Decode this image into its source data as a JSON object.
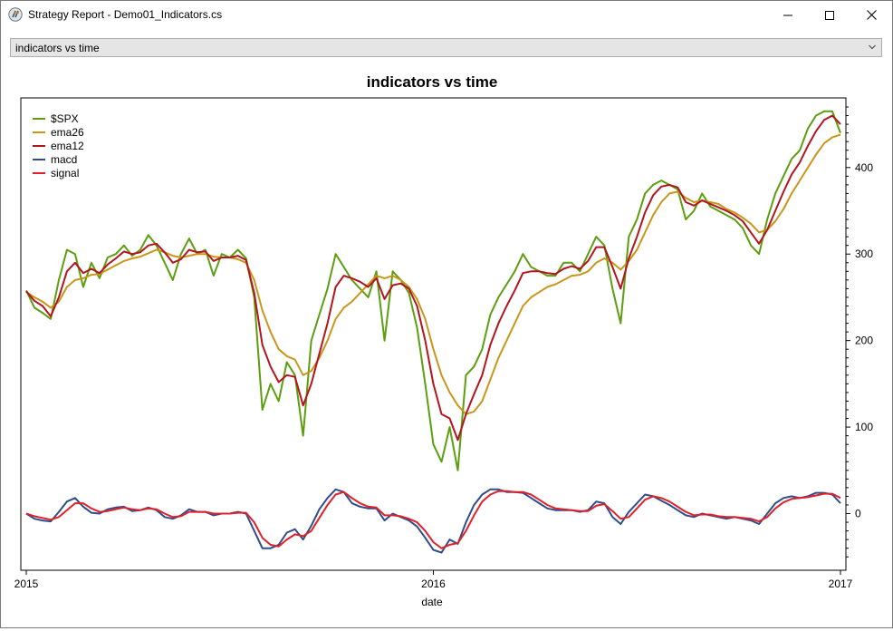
{
  "window": {
    "title": "Strategy Report - Demo01_Indicators.cs",
    "icon": "app-logo-icon",
    "controls": [
      "minimize-icon",
      "maximize-icon",
      "close-icon"
    ]
  },
  "selector": {
    "selected": "indicators vs time",
    "icon": "chevron-down-icon"
  },
  "chart_data": {
    "type": "line",
    "title": "indicators vs time",
    "xlabel": "date",
    "ylabel": "",
    "x_ticks": [
      "2015",
      "2016",
      "2017"
    ],
    "y_ticks": [
      "0",
      "100",
      "200",
      "300",
      "400"
    ],
    "xlim": [
      2015.0,
      2017.0
    ],
    "ylim": [
      -55,
      470
    ],
    "legend_position": "top-left",
    "grid": false,
    "series": [
      {
        "name": "$SPX",
        "color": "#5b9e0f",
        "x": [
          2015.0,
          2015.02,
          2015.04,
          2015.06,
          2015.08,
          2015.1,
          2015.12,
          2015.14,
          2015.16,
          2015.18,
          2015.2,
          2015.22,
          2015.24,
          2015.26,
          2015.28,
          2015.3,
          2015.32,
          2015.34,
          2015.36,
          2015.38,
          2015.4,
          2015.42,
          2015.44,
          2015.46,
          2015.48,
          2015.5,
          2015.52,
          2015.54,
          2015.56,
          2015.58,
          2015.6,
          2015.62,
          2015.64,
          2015.66,
          2015.68,
          2015.7,
          2015.72,
          2015.74,
          2015.76,
          2015.78,
          2015.8,
          2015.82,
          2015.84,
          2015.86,
          2015.88,
          2015.9,
          2015.92,
          2015.94,
          2015.96,
          2015.98,
          2016.0,
          2016.02,
          2016.04,
          2016.06,
          2016.08,
          2016.1,
          2016.12,
          2016.14,
          2016.16,
          2016.18,
          2016.2,
          2016.22,
          2016.24,
          2016.26,
          2016.28,
          2016.3,
          2016.32,
          2016.34,
          2016.36,
          2016.38,
          2016.4,
          2016.42,
          2016.44,
          2016.46,
          2016.48,
          2016.5,
          2016.52,
          2016.54,
          2016.56,
          2016.58,
          2016.6,
          2016.62,
          2016.64,
          2016.66,
          2016.68,
          2016.7,
          2016.72,
          2016.74,
          2016.76,
          2016.78,
          2016.8,
          2016.82,
          2016.84,
          2016.86,
          2016.88,
          2016.9,
          2016.92,
          2016.94,
          2016.96,
          2016.98,
          2017.0
        ],
        "y": [
          258,
          238,
          232,
          225,
          270,
          305,
          300,
          262,
          290,
          272,
          296,
          300,
          310,
          298,
          305,
          322,
          310,
          290,
          270,
          300,
          318,
          300,
          305,
          275,
          300,
          296,
          305,
          295,
          250,
          120,
          150,
          130,
          175,
          160,
          90,
          200,
          230,
          260,
          300,
          285,
          270,
          260,
          250,
          280,
          200,
          280,
          270,
          255,
          215,
          150,
          80,
          60,
          100,
          50,
          160,
          170,
          190,
          230,
          250,
          265,
          280,
          300,
          285,
          280,
          275,
          275,
          290,
          290,
          280,
          300,
          320,
          310,
          260,
          220,
          320,
          340,
          370,
          380,
          385,
          380,
          375,
          340,
          350,
          370,
          355,
          350,
          345,
          340,
          330,
          310,
          300,
          340,
          370,
          390,
          410,
          420,
          445,
          460,
          465,
          465,
          440
        ]
      },
      {
        "name": "ema26",
        "color": "#c8961a",
        "x": [
          2015.0,
          2015.02,
          2015.04,
          2015.06,
          2015.08,
          2015.1,
          2015.12,
          2015.14,
          2015.16,
          2015.18,
          2015.2,
          2015.22,
          2015.24,
          2015.26,
          2015.28,
          2015.3,
          2015.32,
          2015.34,
          2015.36,
          2015.38,
          2015.4,
          2015.42,
          2015.44,
          2015.46,
          2015.48,
          2015.5,
          2015.52,
          2015.54,
          2015.56,
          2015.58,
          2015.6,
          2015.62,
          2015.64,
          2015.66,
          2015.68,
          2015.7,
          2015.72,
          2015.74,
          2015.76,
          2015.78,
          2015.8,
          2015.82,
          2015.84,
          2015.86,
          2015.88,
          2015.9,
          2015.92,
          2015.94,
          2015.96,
          2015.98,
          2016.0,
          2016.02,
          2016.04,
          2016.06,
          2016.08,
          2016.1,
          2016.12,
          2016.14,
          2016.16,
          2016.18,
          2016.2,
          2016.22,
          2016.24,
          2016.26,
          2016.28,
          2016.3,
          2016.32,
          2016.34,
          2016.36,
          2016.38,
          2016.4,
          2016.42,
          2016.44,
          2016.46,
          2016.48,
          2016.5,
          2016.52,
          2016.54,
          2016.56,
          2016.58,
          2016.6,
          2016.62,
          2016.64,
          2016.66,
          2016.68,
          2016.7,
          2016.72,
          2016.74,
          2016.76,
          2016.78,
          2016.8,
          2016.82,
          2016.84,
          2016.86,
          2016.88,
          2016.9,
          2016.92,
          2016.94,
          2016.96,
          2016.98,
          2017.0
        ],
        "y": [
          256,
          250,
          245,
          238,
          245,
          262,
          270,
          272,
          276,
          277,
          282,
          287,
          292,
          295,
          297,
          301,
          305,
          302,
          298,
          296,
          298,
          300,
          300,
          297,
          296,
          296,
          294,
          290,
          270,
          235,
          210,
          190,
          182,
          178,
          160,
          165,
          180,
          200,
          225,
          238,
          245,
          255,
          265,
          275,
          272,
          275,
          270,
          262,
          248,
          225,
          190,
          160,
          140,
          125,
          115,
          118,
          130,
          155,
          180,
          200,
          220,
          240,
          250,
          256,
          262,
          265,
          270,
          275,
          276,
          280,
          290,
          295,
          290,
          282,
          292,
          305,
          325,
          345,
          360,
          370,
          372,
          365,
          360,
          362,
          360,
          358,
          352,
          348,
          342,
          335,
          325,
          328,
          338,
          352,
          370,
          385,
          400,
          415,
          428,
          435,
          438
        ]
      },
      {
        "name": "ema12",
        "color": "#b3141e",
        "x": [
          2015.0,
          2015.02,
          2015.04,
          2015.06,
          2015.08,
          2015.1,
          2015.12,
          2015.14,
          2015.16,
          2015.18,
          2015.2,
          2015.22,
          2015.24,
          2015.26,
          2015.28,
          2015.3,
          2015.32,
          2015.34,
          2015.36,
          2015.38,
          2015.4,
          2015.42,
          2015.44,
          2015.46,
          2015.48,
          2015.5,
          2015.52,
          2015.54,
          2015.56,
          2015.58,
          2015.6,
          2015.62,
          2015.64,
          2015.66,
          2015.68,
          2015.7,
          2015.72,
          2015.74,
          2015.76,
          2015.78,
          2015.8,
          2015.82,
          2015.84,
          2015.86,
          2015.88,
          2015.9,
          2015.92,
          2015.94,
          2015.96,
          2015.98,
          2016.0,
          2016.02,
          2016.04,
          2016.06,
          2016.08,
          2016.1,
          2016.12,
          2016.14,
          2016.16,
          2016.18,
          2016.2,
          2016.22,
          2016.24,
          2016.26,
          2016.28,
          2016.3,
          2016.32,
          2016.34,
          2016.36,
          2016.38,
          2016.4,
          2016.42,
          2016.44,
          2016.46,
          2016.48,
          2016.5,
          2016.52,
          2016.54,
          2016.56,
          2016.58,
          2016.6,
          2016.62,
          2016.64,
          2016.66,
          2016.68,
          2016.7,
          2016.72,
          2016.74,
          2016.76,
          2016.78,
          2016.8,
          2016.82,
          2016.84,
          2016.86,
          2016.88,
          2016.9,
          2016.92,
          2016.94,
          2016.96,
          2016.98,
          2017.0
        ],
        "y": [
          257,
          246,
          240,
          228,
          250,
          280,
          290,
          278,
          283,
          278,
          288,
          295,
          303,
          300,
          302,
          310,
          312,
          302,
          290,
          294,
          305,
          302,
          303,
          292,
          296,
          296,
          298,
          293,
          255,
          195,
          170,
          152,
          160,
          158,
          125,
          150,
          185,
          220,
          262,
          275,
          272,
          268,
          262,
          272,
          248,
          264,
          266,
          260,
          240,
          200,
          150,
          115,
          110,
          85,
          115,
          138,
          160,
          195,
          220,
          240,
          258,
          278,
          280,
          280,
          278,
          277,
          283,
          286,
          283,
          292,
          308,
          308,
          285,
          260,
          295,
          320,
          348,
          368,
          378,
          380,
          377,
          360,
          356,
          362,
          358,
          354,
          350,
          345,
          338,
          325,
          312,
          328,
          350,
          372,
          392,
          406,
          425,
          442,
          455,
          460,
          450
        ]
      },
      {
        "name": "macd",
        "color": "#2e4d8a",
        "x": [
          2015.0,
          2015.02,
          2015.04,
          2015.06,
          2015.08,
          2015.1,
          2015.12,
          2015.14,
          2015.16,
          2015.18,
          2015.2,
          2015.22,
          2015.24,
          2015.26,
          2015.28,
          2015.3,
          2015.32,
          2015.34,
          2015.36,
          2015.38,
          2015.4,
          2015.42,
          2015.44,
          2015.46,
          2015.48,
          2015.5,
          2015.52,
          2015.54,
          2015.56,
          2015.58,
          2015.6,
          2015.62,
          2015.64,
          2015.66,
          2015.68,
          2015.7,
          2015.72,
          2015.74,
          2015.76,
          2015.78,
          2015.8,
          2015.82,
          2015.84,
          2015.86,
          2015.88,
          2015.9,
          2015.92,
          2015.94,
          2015.96,
          2015.98,
          2016.0,
          2016.02,
          2016.04,
          2016.06,
          2016.08,
          2016.1,
          2016.12,
          2016.14,
          2016.16,
          2016.18,
          2016.2,
          2016.22,
          2016.24,
          2016.26,
          2016.28,
          2016.3,
          2016.32,
          2016.34,
          2016.36,
          2016.38,
          2016.4,
          2016.42,
          2016.44,
          2016.46,
          2016.48,
          2016.5,
          2016.52,
          2016.54,
          2016.56,
          2016.58,
          2016.6,
          2016.62,
          2016.64,
          2016.66,
          2016.68,
          2016.7,
          2016.72,
          2016.74,
          2016.76,
          2016.78,
          2016.8,
          2016.82,
          2016.84,
          2016.86,
          2016.88,
          2016.9,
          2016.92,
          2016.94,
          2016.96,
          2016.98,
          2017.0
        ],
        "y": [
          0,
          -6,
          -8,
          -9,
          2,
          14,
          18,
          8,
          1,
          0,
          5,
          7,
          8,
          3,
          4,
          7,
          4,
          -4,
          -6,
          -2,
          5,
          2,
          2,
          -2,
          0,
          0,
          2,
          0,
          -20,
          -40,
          -40,
          -36,
          -22,
          -18,
          -30,
          -14,
          5,
          18,
          28,
          25,
          12,
          8,
          6,
          6,
          -8,
          0,
          -4,
          -8,
          -15,
          -28,
          -42,
          -45,
          -30,
          -35,
          -10,
          10,
          22,
          28,
          28,
          25,
          25,
          24,
          18,
          12,
          6,
          4,
          4,
          4,
          2,
          4,
          14,
          12,
          -4,
          -12,
          2,
          12,
          22,
          20,
          15,
          10,
          4,
          -2,
          -4,
          0,
          -2,
          -4,
          -6,
          -4,
          -6,
          -8,
          -12,
          0,
          12,
          18,
          20,
          18,
          20,
          24,
          24,
          22,
          12
        ]
      },
      {
        "name": "signal",
        "color": "#e0202a",
        "x": [
          2015.0,
          2015.02,
          2015.04,
          2015.06,
          2015.08,
          2015.1,
          2015.12,
          2015.14,
          2015.16,
          2015.18,
          2015.2,
          2015.22,
          2015.24,
          2015.26,
          2015.28,
          2015.3,
          2015.32,
          2015.34,
          2015.36,
          2015.38,
          2015.4,
          2015.42,
          2015.44,
          2015.46,
          2015.48,
          2015.5,
          2015.52,
          2015.54,
          2015.56,
          2015.58,
          2015.6,
          2015.62,
          2015.64,
          2015.66,
          2015.68,
          2015.7,
          2015.72,
          2015.74,
          2015.76,
          2015.78,
          2015.8,
          2015.82,
          2015.84,
          2015.86,
          2015.88,
          2015.9,
          2015.92,
          2015.94,
          2015.96,
          2015.98,
          2016.0,
          2016.02,
          2016.04,
          2016.06,
          2016.08,
          2016.1,
          2016.12,
          2016.14,
          2016.16,
          2016.18,
          2016.2,
          2016.22,
          2016.24,
          2016.26,
          2016.28,
          2016.3,
          2016.32,
          2016.34,
          2016.36,
          2016.38,
          2016.4,
          2016.42,
          2016.44,
          2016.46,
          2016.48,
          2016.5,
          2016.52,
          2016.54,
          2016.56,
          2016.58,
          2016.6,
          2016.62,
          2016.64,
          2016.66,
          2016.68,
          2016.7,
          2016.72,
          2016.74,
          2016.76,
          2016.78,
          2016.8,
          2016.82,
          2016.84,
          2016.86,
          2016.88,
          2016.9,
          2016.92,
          2016.94,
          2016.96,
          2016.98,
          2017.0
        ],
        "y": [
          0,
          -3,
          -5,
          -7,
          -4,
          4,
          12,
          12,
          6,
          2,
          3,
          5,
          7,
          5,
          4,
          6,
          5,
          0,
          -4,
          -3,
          2,
          2,
          2,
          0,
          0,
          0,
          1,
          1,
          -10,
          -28,
          -36,
          -38,
          -30,
          -24,
          -26,
          -20,
          -5,
          10,
          22,
          25,
          18,
          12,
          8,
          7,
          -2,
          -2,
          -3,
          -6,
          -10,
          -20,
          -33,
          -40,
          -36,
          -34,
          -20,
          -2,
          14,
          22,
          26,
          26,
          25,
          25,
          22,
          16,
          10,
          6,
          5,
          4,
          3,
          3,
          9,
          11,
          3,
          -6,
          -4,
          6,
          16,
          20,
          18,
          14,
          8,
          2,
          -2,
          -1,
          -1,
          -3,
          -4,
          -4,
          -5,
          -6,
          -9,
          -4,
          6,
          13,
          17,
          18,
          19,
          21,
          23,
          23,
          18
        ]
      }
    ]
  }
}
